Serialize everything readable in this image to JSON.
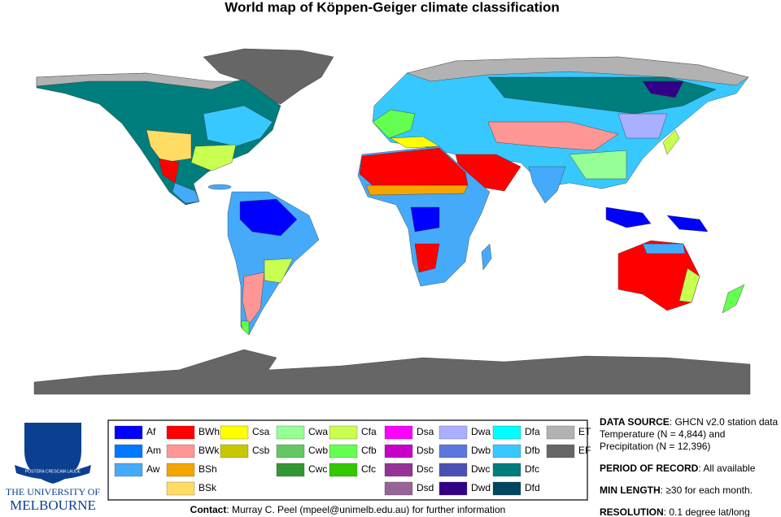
{
  "title": "World map of Köppen-Geiger climate classification",
  "legend": {
    "columns": [
      [
        {
          "code": "Af",
          "color": "#0000ff"
        },
        {
          "code": "Am",
          "color": "#0078ff"
        },
        {
          "code": "Aw",
          "color": "#46aafa"
        }
      ],
      [
        {
          "code": "BWh",
          "color": "#ff0000"
        },
        {
          "code": "BWk",
          "color": "#ff9696"
        },
        {
          "code": "BSh",
          "color": "#f5a500"
        },
        {
          "code": "BSk",
          "color": "#ffdc64"
        }
      ],
      [
        {
          "code": "Csa",
          "color": "#ffff00"
        },
        {
          "code": "Csb",
          "color": "#c8c800"
        }
      ],
      [
        {
          "code": "Cwa",
          "color": "#96ff96"
        },
        {
          "code": "Cwb",
          "color": "#63c764"
        },
        {
          "code": "Cwc",
          "color": "#329633"
        }
      ],
      [
        {
          "code": "Cfa",
          "color": "#c8ff50"
        },
        {
          "code": "Cfb",
          "color": "#64ff50"
        },
        {
          "code": "Cfc",
          "color": "#32c800"
        }
      ],
      [
        {
          "code": "Dsa",
          "color": "#ff00ff"
        },
        {
          "code": "Dsb",
          "color": "#c800c8"
        },
        {
          "code": "Dsc",
          "color": "#963296"
        },
        {
          "code": "Dsd",
          "color": "#966496"
        }
      ],
      [
        {
          "code": "Dwa",
          "color": "#aaafff"
        },
        {
          "code": "Dwb",
          "color": "#5a78dc"
        },
        {
          "code": "Dwc",
          "color": "#4b50b4"
        },
        {
          "code": "Dwd",
          "color": "#320087"
        }
      ],
      [
        {
          "code": "Dfa",
          "color": "#00ffff"
        },
        {
          "code": "Dfb",
          "color": "#37c8ff"
        },
        {
          "code": "Dfc",
          "color": "#007d7d"
        },
        {
          "code": "Dfd",
          "color": "#00465f"
        }
      ],
      [
        {
          "code": "ET",
          "color": "#b2b2b2"
        },
        {
          "code": "EF",
          "color": "#666666"
        }
      ]
    ]
  },
  "contact": {
    "label": "Contact",
    "text": ": Murray C. Peel (mpeel@unimelb.edu.au) for further information"
  },
  "info": [
    {
      "label": "DATA SOURCE",
      "lines": [
        ": GHCN v2.0 station data",
        "Temperature (N = 4,844) and",
        "Precipitation (N = 12,396)"
      ]
    },
    {
      "label": "PERIOD OF RECORD",
      "lines": [
        ": All available"
      ]
    },
    {
      "label": "MIN LENGTH",
      "lines": [
        ": ≥30 for each month."
      ]
    },
    {
      "label": "RESOLUTION",
      "lines": [
        ": 0.1 degree lat/long"
      ]
    }
  ],
  "logo": {
    "motto": "POSTERA CRESCAM LAUDE",
    "line1": "THE UNIVERSITY OF",
    "line2": "MELBOURNE"
  }
}
